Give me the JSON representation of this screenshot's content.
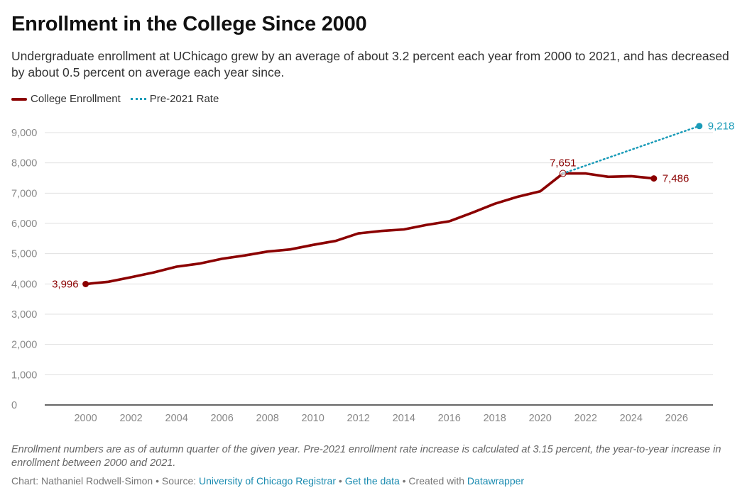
{
  "title": "Enrollment in the College Since 2000",
  "subtitle": "Undergraduate enrollment at UChicago grew by an average of about 3.2 percent each year from 2000 to 2021, and has decreased by about 0.5 percent on average each year since.",
  "legend": {
    "series1": "College Enrollment",
    "series2": "Pre-2021 Rate"
  },
  "note": "Enrollment numbers are as of autumn quarter of the given year. Pre-2021 enrollment rate increase is calculated at 3.15 percent, the year-to-year increase in enrollment between 2000 and 2021.",
  "credits": {
    "chart_prefix": "Chart: Nathaniel Rodwell-Simon • Source: ",
    "source": "University of Chicago Registrar",
    "sep1": " • ",
    "get_data": "Get the data",
    "sep2": " • Created with ",
    "tool": "Datawrapper"
  },
  "colors": {
    "enrollment": "#8b0000",
    "projection": "#1a9bb8",
    "grid": "#e0e0e0",
    "axis": "#333333",
    "tick_text": "#888888"
  },
  "chart_data": {
    "type": "line",
    "xlim": [
      1998.2,
      2027.6
    ],
    "ylim": [
      0,
      9000
    ],
    "x_ticks": [
      2000,
      2002,
      2004,
      2006,
      2008,
      2010,
      2012,
      2014,
      2016,
      2018,
      2020,
      2022,
      2024,
      2026
    ],
    "x_tick_labels": [
      "2000",
      "2002",
      "2004",
      "2006",
      "2008",
      "2010",
      "2012",
      "2014",
      "2016",
      "2018",
      "2020",
      "2022",
      "2024",
      "2026"
    ],
    "y_ticks": [
      0,
      1000,
      2000,
      3000,
      4000,
      5000,
      6000,
      7000,
      8000,
      9000
    ],
    "y_tick_labels": [
      "0",
      "1,000",
      "2,000",
      "3,000",
      "4,000",
      "5,000",
      "6,000",
      "7,000",
      "8,000",
      "9,000"
    ],
    "grid": true,
    "series": [
      {
        "name": "College Enrollment",
        "style": "solid",
        "x": [
          2000,
          2001,
          2002,
          2003,
          2004,
          2005,
          2006,
          2007,
          2008,
          2009,
          2010,
          2011,
          2012,
          2013,
          2014,
          2015,
          2016,
          2017,
          2018,
          2019,
          2020,
          2021,
          2022,
          2023,
          2024,
          2025
        ],
        "values": [
          3996,
          4070,
          4220,
          4380,
          4570,
          4670,
          4830,
          4940,
          5070,
          5140,
          5290,
          5420,
          5670,
          5750,
          5800,
          5950,
          6070,
          6350,
          6650,
          6880,
          7060,
          7651,
          7651,
          7540,
          7560,
          7486
        ]
      },
      {
        "name": "Pre-2021 Rate",
        "style": "dotted",
        "x": [
          2021,
          2027
        ],
        "values": [
          7651,
          9218
        ]
      }
    ],
    "annotations": [
      {
        "label": "3,996",
        "x": 2000,
        "y": 3996,
        "series": 0,
        "pos": "left",
        "marker": "filled"
      },
      {
        "label": "7,651",
        "x": 2021,
        "y": 7651,
        "series": 0,
        "pos": "above",
        "marker": "hollow"
      },
      {
        "label": "7,486",
        "x": 2025,
        "y": 7486,
        "series": 0,
        "pos": "right",
        "marker": "filled"
      },
      {
        "label": "9,218",
        "x": 2027,
        "y": 9218,
        "series": 1,
        "pos": "right",
        "marker": "filled"
      }
    ]
  }
}
